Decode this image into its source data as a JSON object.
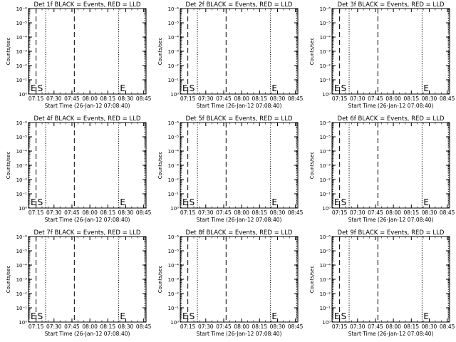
{
  "chart_data": [
    {
      "type": "line",
      "title": "Det 1f BLACK = Events, RED = LLD",
      "ylabel": "Counts/sec",
      "xlabel": "Start Time (26-Jan-12 07:08:40)",
      "x_ticks": [
        "07:15",
        "07:30",
        "07:45",
        "08:00",
        "08:15",
        "08:30",
        "08:45"
      ],
      "y_ticks": [
        "10⁰",
        "10⁻¹",
        "10⁻²",
        "10⁻³",
        "10⁻⁴",
        "10⁻⁵",
        "10⁻⁶"
      ],
      "markers": [
        {
          "label": "E",
          "time": "07:08:40",
          "style": "dotted"
        },
        {
          "label": "S",
          "time": "07:15",
          "style": "dashed"
        },
        {
          "label": "",
          "time": "07:23",
          "style": "dotted"
        },
        {
          "label": "",
          "time": "07:47",
          "style": "dashed"
        },
        {
          "label": "E",
          "time": "08:24",
          "style": "dotted"
        },
        {
          "label": "",
          "time": "08:46",
          "style": "dotted"
        }
      ],
      "series": [
        {
          "name": "",
          "values": []
        }
      ]
    },
    {
      "type": "line",
      "title": "Det 2f BLACK = Events, RED = LLD",
      "ylabel": "Counts/sec",
      "xlabel": "Start Time (26-Jan-12 07:08:40)",
      "x_ticks": [
        "07:15",
        "07:30",
        "07:45",
        "08:00",
        "08:15",
        "08:30",
        "08:45"
      ],
      "y_ticks": [
        "10⁰",
        "10⁻¹",
        "10⁻²",
        "10⁻³",
        "10⁻⁴",
        "10⁻⁵",
        "10⁻⁶"
      ],
      "markers": [
        {
          "label": "E",
          "time": "07:08:40",
          "style": "dotted"
        },
        {
          "label": "S",
          "time": "07:15",
          "style": "dashed"
        },
        {
          "label": "",
          "time": "07:23",
          "style": "dotted"
        },
        {
          "label": "",
          "time": "07:47",
          "style": "dashed"
        },
        {
          "label": "E",
          "time": "08:24",
          "style": "dotted"
        },
        {
          "label": "",
          "time": "08:46",
          "style": "dotted"
        }
      ],
      "series": [
        {
          "name": "",
          "values": []
        }
      ]
    },
    {
      "type": "line",
      "title": "Det 3f BLACK = Events, RED = LLD",
      "ylabel": "Counts/sec",
      "xlabel": "Start Time (26-Jan-12 07:08:40)",
      "x_ticks": [
        "07:15",
        "07:30",
        "07:45",
        "08:00",
        "08:15",
        "08:30",
        "08:45"
      ],
      "y_ticks": [
        "10⁰",
        "10⁻¹",
        "10⁻²",
        "10⁻³",
        "10⁻⁴",
        "10⁻⁵",
        "10⁻⁶"
      ],
      "markers": [
        {
          "label": "E",
          "time": "07:08:40",
          "style": "dotted"
        },
        {
          "label": "S",
          "time": "07:15",
          "style": "dashed"
        },
        {
          "label": "",
          "time": "07:23",
          "style": "dotted"
        },
        {
          "label": "",
          "time": "07:47",
          "style": "dashed"
        },
        {
          "label": "E",
          "time": "08:24",
          "style": "dotted"
        },
        {
          "label": "",
          "time": "08:46",
          "style": "dotted"
        }
      ],
      "series": [
        {
          "name": "",
          "values": []
        }
      ]
    },
    {
      "type": "line",
      "title": "Det 4f BLACK = Events, RED = LLD",
      "ylabel": "Counts/sec",
      "xlabel": "Start Time (26-Jan-12 07:08:40)",
      "x_ticks": [
        "07:15",
        "07:30",
        "07:45",
        "08:00",
        "08:15",
        "08:30",
        "08:45"
      ],
      "y_ticks": [
        "10⁰",
        "10⁻¹",
        "10⁻²",
        "10⁻³",
        "10⁻⁴",
        "10⁻⁵",
        "10⁻⁶"
      ],
      "markers": [
        {
          "label": "E",
          "time": "07:08:40",
          "style": "dotted"
        },
        {
          "label": "S",
          "time": "07:15",
          "style": "dashed"
        },
        {
          "label": "",
          "time": "07:23",
          "style": "dotted"
        },
        {
          "label": "",
          "time": "07:47",
          "style": "dashed"
        },
        {
          "label": "E",
          "time": "08:24",
          "style": "dotted"
        },
        {
          "label": "",
          "time": "08:46",
          "style": "dotted"
        }
      ],
      "series": [
        {
          "name": "",
          "values": []
        }
      ]
    },
    {
      "type": "line",
      "title": "Det 5f BLACK = Events, RED = LLD",
      "ylabel": "Counts/sec",
      "xlabel": "Start Time (26-Jan-12 07:08:40)",
      "x_ticks": [
        "07:15",
        "07:30",
        "07:45",
        "08:00",
        "08:15",
        "08:30",
        "08:45"
      ],
      "y_ticks": [
        "10⁰",
        "10⁻¹",
        "10⁻²",
        "10⁻³",
        "10⁻⁴",
        "10⁻⁵",
        "10⁻⁶"
      ],
      "markers": [
        {
          "label": "E",
          "time": "07:08:40",
          "style": "dotted"
        },
        {
          "label": "S",
          "time": "07:15",
          "style": "dashed"
        },
        {
          "label": "",
          "time": "07:23",
          "style": "dotted"
        },
        {
          "label": "",
          "time": "07:47",
          "style": "dashed"
        },
        {
          "label": "E",
          "time": "08:24",
          "style": "dotted"
        },
        {
          "label": "",
          "time": "08:46",
          "style": "dotted"
        }
      ],
      "series": [
        {
          "name": "",
          "values": []
        }
      ]
    },
    {
      "type": "line",
      "title": "Det 6f BLACK = Events, RED = LLD",
      "ylabel": "Counts/sec",
      "xlabel": "Start Time (26-Jan-12 07:08:40)",
      "x_ticks": [
        "07:15",
        "07:30",
        "07:45",
        "08:00",
        "08:15",
        "08:30",
        "08:45"
      ],
      "y_ticks": [
        "10⁰",
        "10⁻¹",
        "10⁻²",
        "10⁻³",
        "10⁻⁴",
        "10⁻⁵",
        "10⁻⁶"
      ],
      "markers": [
        {
          "label": "E",
          "time": "07:08:40",
          "style": "dotted"
        },
        {
          "label": "S",
          "time": "07:15",
          "style": "dashed"
        },
        {
          "label": "",
          "time": "07:23",
          "style": "dotted"
        },
        {
          "label": "",
          "time": "07:47",
          "style": "dashed"
        },
        {
          "label": "E",
          "time": "08:24",
          "style": "dotted"
        },
        {
          "label": "",
          "time": "08:46",
          "style": "dotted"
        }
      ],
      "series": [
        {
          "name": "",
          "values": []
        }
      ]
    },
    {
      "type": "line",
      "title": "Det 7f BLACK = Events, RED = LLD",
      "ylabel": "Counts/sec",
      "xlabel": "Start Time (26-Jan-12 07:08:40)",
      "x_ticks": [
        "07:15",
        "07:30",
        "07:45",
        "08:00",
        "08:15",
        "08:30",
        "08:45"
      ],
      "y_ticks": [
        "10⁰",
        "10⁻¹",
        "10⁻²",
        "10⁻³",
        "10⁻⁴",
        "10⁻⁵",
        "10⁻⁶"
      ],
      "markers": [
        {
          "label": "E",
          "time": "07:08:40",
          "style": "dotted"
        },
        {
          "label": "S",
          "time": "07:15",
          "style": "dashed"
        },
        {
          "label": "",
          "time": "07:23",
          "style": "dotted"
        },
        {
          "label": "",
          "time": "07:47",
          "style": "dashed"
        },
        {
          "label": "E",
          "time": "08:24",
          "style": "dotted"
        },
        {
          "label": "",
          "time": "08:46",
          "style": "dotted"
        }
      ],
      "series": [
        {
          "name": "",
          "values": []
        }
      ]
    },
    {
      "type": "line",
      "title": "Det 8f BLACK = Events, RED = LLD",
      "ylabel": "Counts/sec",
      "xlabel": "Start Time (26-Jan-12 07:08:40)",
      "x_ticks": [
        "07:15",
        "07:30",
        "07:45",
        "08:00",
        "08:15",
        "08:30",
        "08:45"
      ],
      "y_ticks": [
        "10⁰",
        "10⁻¹",
        "10⁻²",
        "10⁻³",
        "10⁻⁴",
        "10⁻⁵",
        "10⁻⁶"
      ],
      "markers": [
        {
          "label": "E",
          "time": "07:08:40",
          "style": "dotted"
        },
        {
          "label": "S",
          "time": "07:15",
          "style": "dashed"
        },
        {
          "label": "",
          "time": "07:23",
          "style": "dotted"
        },
        {
          "label": "",
          "time": "07:47",
          "style": "dashed"
        },
        {
          "label": "E",
          "time": "08:24",
          "style": "dotted"
        },
        {
          "label": "",
          "time": "08:46",
          "style": "dotted"
        }
      ],
      "series": [
        {
          "name": "",
          "values": []
        }
      ]
    },
    {
      "type": "line",
      "title": "Det 9f BLACK = Events, RED = LLD",
      "ylabel": "Counts/sec",
      "xlabel": "Start Time (26-Jan-12 07:08:40)",
      "x_ticks": [
        "07:15",
        "07:30",
        "07:45",
        "08:00",
        "08:15",
        "08:30",
        "08:45"
      ],
      "y_ticks": [
        "10⁰",
        "10⁻¹",
        "10⁻²",
        "10⁻³",
        "10⁻⁴",
        "10⁻⁵",
        "10⁻⁶"
      ],
      "markers": [
        {
          "label": "E",
          "time": "07:08:40",
          "style": "dotted"
        },
        {
          "label": "S",
          "time": "07:15",
          "style": "dashed"
        },
        {
          "label": "",
          "time": "07:23",
          "style": "dotted"
        },
        {
          "label": "",
          "time": "07:47",
          "style": "dashed"
        },
        {
          "label": "E",
          "time": "08:24",
          "style": "dotted"
        },
        {
          "label": "",
          "time": "08:46",
          "style": "dotted"
        }
      ],
      "series": [
        {
          "name": "",
          "values": []
        }
      ]
    }
  ]
}
